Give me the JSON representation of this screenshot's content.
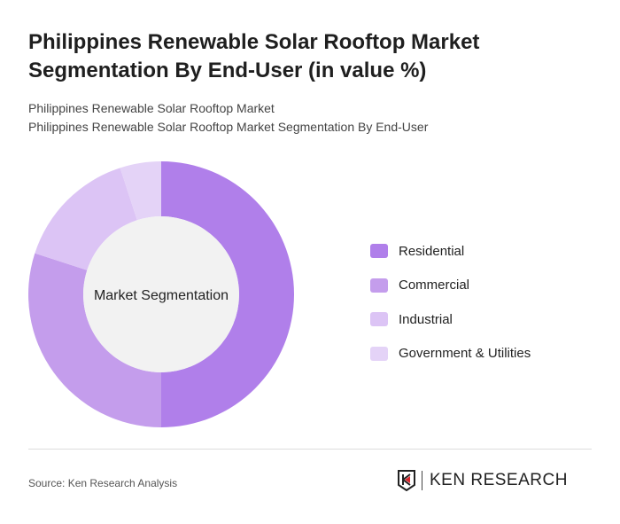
{
  "title": "Philippines Renewable Solar Rooftop Market Segmentation By End-User (in value %)",
  "subtitle1": "Philippines Renewable Solar Rooftop Market",
  "subtitle2": "Philippines Renewable Solar Rooftop Market Segmentation By End-User",
  "source": "Source: Ken Research Analysis",
  "logo_text": "KEN RESEARCH",
  "chart_data": {
    "type": "pie",
    "variant": "donut",
    "center_label": "Market Segmentation",
    "categories": [
      "Residential",
      "Commercial",
      "Industrial",
      "Government & Utilities"
    ],
    "values": [
      50,
      30,
      15,
      5
    ],
    "colors": [
      "#b07fea",
      "#c49dec",
      "#dcc4f5",
      "#e4d3f7"
    ],
    "legend_position": "right"
  }
}
